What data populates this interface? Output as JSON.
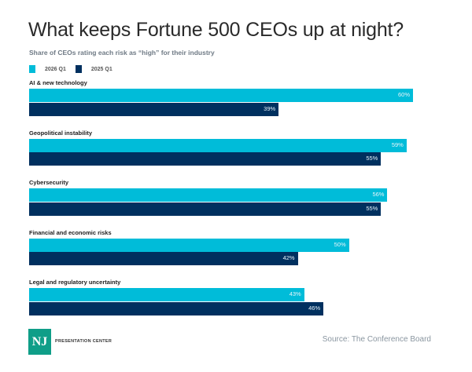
{
  "chart_data": {
    "type": "bar",
    "orientation": "horizontal",
    "title": "What keeps Fortune 500 CEOs up at night?",
    "subtitle": "Share of CEOs rating each risk as “high” for their industry",
    "categories": [
      "AI & new technology",
      "Geopolitical instability",
      "Cybersecurity",
      "Financial and economic risks",
      "Legal and regulatory uncertainty"
    ],
    "series": [
      {
        "name": "2026 Q1",
        "color": "#00bcd9",
        "values": [
          60,
          59,
          56,
          50,
          43
        ]
      },
      {
        "name": "2025 Q1",
        "color": "#00305f",
        "values": [
          39,
          55,
          55,
          42,
          46
        ]
      }
    ],
    "value_suffix": "%",
    "xlim": [
      0,
      60
    ],
    "legend_position": "top-left",
    "grid": false,
    "xlabel": "",
    "ylabel": ""
  },
  "footer": {
    "logo_text": "NJ",
    "brand": "PRESENTATION CENTER",
    "source": "Source: The Conference Board"
  }
}
